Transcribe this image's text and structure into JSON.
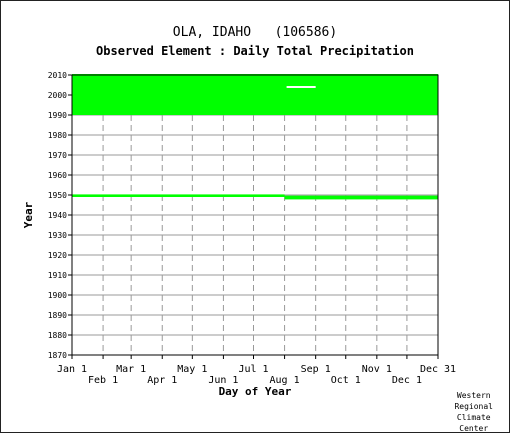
{
  "station": {
    "name": "OLA, IDAHO",
    "id": "(106586)"
  },
  "credit": [
    "Western",
    "Regional",
    "Climate",
    "Center"
  ],
  "colors": {
    "data": "#00ff00",
    "grid": "#999999",
    "axis": "#000000",
    "gap": "#ffffff"
  },
  "chart_data": {
    "type": "scatter",
    "title": "Observed Element : Daily Total Precipitation",
    "xlabel": "Day of Year",
    "ylabel": "Year",
    "xlim": [
      1,
      366
    ],
    "ylim": [
      1870,
      2010
    ],
    "grid": true,
    "x_ticks_upper": [
      {
        "label": "Jan 1",
        "day": 1
      },
      {
        "label": "Mar 1",
        "day": 60
      },
      {
        "label": "May 1",
        "day": 121
      },
      {
        "label": "Jul 1",
        "day": 182
      },
      {
        "label": "Sep 1",
        "day": 244
      },
      {
        "label": "Nov 1",
        "day": 305
      },
      {
        "label": "Dec 31",
        "day": 366
      }
    ],
    "x_ticks_lower": [
      {
        "label": "Feb 1",
        "day": 32
      },
      {
        "label": "Apr 1",
        "day": 91
      },
      {
        "label": "Jun 1",
        "day": 152
      },
      {
        "label": "Aug 1",
        "day": 213
      },
      {
        "label": "Oct 1",
        "day": 274
      },
      {
        "label": "Dec 1",
        "day": 335
      }
    ],
    "y_ticks": [
      1870,
      1880,
      1890,
      1900,
      1910,
      1920,
      1930,
      1940,
      1950,
      1960,
      1970,
      1980,
      1990,
      2000,
      2010
    ],
    "observed_bands": [
      {
        "day_start": 1,
        "day_end": 213,
        "year_start": 1949,
        "year_end": 1950.3
      },
      {
        "day_start": 213,
        "day_end": 366,
        "year_start": 1947.8,
        "year_end": 1949.7
      },
      {
        "day_start": 1,
        "day_end": 366,
        "year_start": 1990,
        "year_end": 2010.5
      }
    ],
    "missing_segments": [
      {
        "day_start": 215,
        "day_end": 244,
        "year": 2004
      }
    ]
  }
}
